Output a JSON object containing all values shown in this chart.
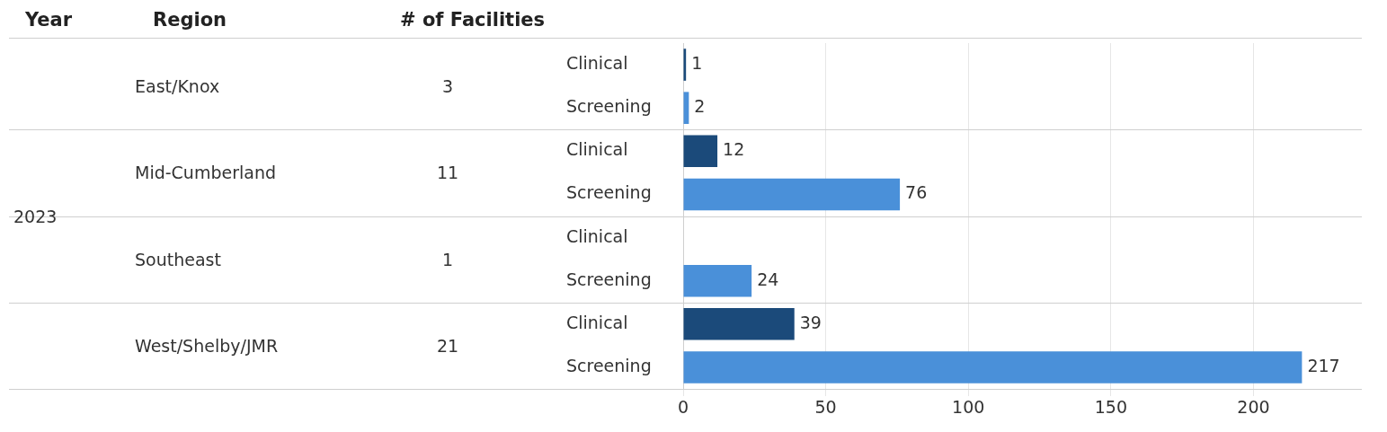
{
  "chart_data": {
    "type": "bar",
    "orientation": "horizontal",
    "categories": [
      "Clinical",
      "Screening",
      "Clinical",
      "Screening",
      "Clinical",
      "Screening",
      "Clinical",
      "Screening"
    ],
    "values": [
      1,
      2,
      12,
      76,
      null,
      24,
      39,
      217
    ],
    "colors": [
      "#1b4a7a",
      "#4a90d9",
      "#1b4a7a",
      "#4a90d9",
      "#1b4a7a",
      "#4a90d9",
      "#1b4a7a",
      "#4a90d9"
    ],
    "xlim": [
      0,
      238
    ],
    "xticks": [
      0,
      50,
      100,
      150,
      200
    ],
    "grid": "x",
    "legend": false,
    "data_labels": true,
    "annotations": [
      "Year",
      "Region",
      "# of Facilities",
      "2023",
      "East/Knox",
      "3",
      "Mid-Cumberland",
      "11",
      "Southeast",
      "1",
      "West/Shelby/JMR",
      "21"
    ]
  }
}
